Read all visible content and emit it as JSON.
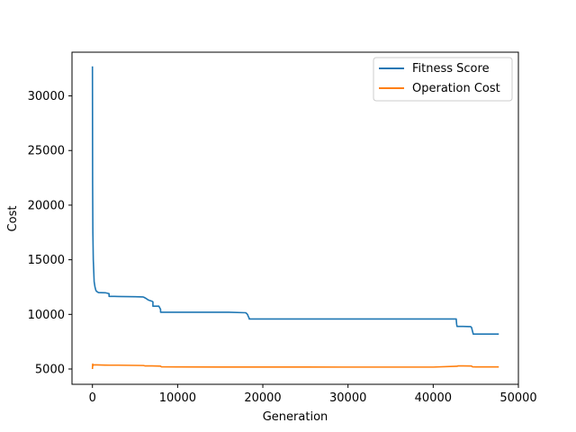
{
  "chart_data": {
    "type": "line",
    "title": "",
    "xlabel": "Generation",
    "ylabel": "Cost",
    "xlim": [
      -2400,
      50000
    ],
    "ylim": [
      3600,
      34000
    ],
    "xticks": [
      0,
      10000,
      20000,
      30000,
      40000,
      50000
    ],
    "xtick_labels": [
      "0",
      "10000",
      "20000",
      "30000",
      "40000",
      "50000"
    ],
    "yticks": [
      5000,
      10000,
      15000,
      20000,
      25000,
      30000
    ],
    "ytick_labels": [
      "5000",
      "10000",
      "15000",
      "20000",
      "25000",
      "30000"
    ],
    "grid": false,
    "legend_position": "top-right",
    "series": [
      {
        "name": "Fitness Score",
        "color": "#1f77b4",
        "x": [
          0,
          20,
          50,
          100,
          150,
          200,
          300,
          400,
          500,
          700,
          1000,
          1500,
          1950,
          1950,
          2200,
          3000,
          4000,
          5000,
          5900,
          6000,
          6200,
          6400,
          6600,
          6800,
          7000,
          7100,
          7100,
          7800,
          7900,
          8000,
          8000,
          8500,
          10000,
          12000,
          14000,
          16000,
          18000,
          18200,
          18300,
          18400,
          18400,
          25000,
          30000,
          35000,
          40000,
          42700,
          42750,
          42800,
          43500,
          44400,
          44500,
          44600,
          44700,
          47700
        ],
        "y": [
          32700,
          22000,
          17500,
          15000,
          14000,
          13000,
          12500,
          12200,
          12100,
          12000,
          11990,
          11980,
          11900,
          11650,
          11650,
          11640,
          11630,
          11620,
          11600,
          11580,
          11500,
          11400,
          11300,
          11250,
          11200,
          11150,
          10750,
          10750,
          10600,
          10450,
          10200,
          10200,
          10200,
          10200,
          10200,
          10200,
          10150,
          10000,
          9800,
          9650,
          9580,
          9580,
          9580,
          9580,
          9580,
          9580,
          9100,
          8900,
          8900,
          8880,
          8800,
          8500,
          8200,
          8200
        ]
      },
      {
        "name": "Operation Cost",
        "color": "#ff7f0e",
        "x": [
          0,
          30,
          60,
          100,
          500,
          1000,
          1500,
          2000,
          3000,
          4000,
          5000,
          6000,
          6200,
          7000,
          7500,
          8000,
          8100,
          10000,
          15000,
          20000,
          25000,
          30000,
          35000,
          40000,
          42800,
          42900,
          43500,
          44500,
          44600,
          45000,
          47700
        ],
        "y": [
          5000,
          5450,
          5300,
          5380,
          5380,
          5370,
          5360,
          5350,
          5350,
          5340,
          5330,
          5320,
          5280,
          5280,
          5270,
          5260,
          5200,
          5190,
          5180,
          5180,
          5180,
          5175,
          5175,
          5175,
          5250,
          5280,
          5280,
          5270,
          5200,
          5190,
          5190
        ]
      }
    ]
  }
}
